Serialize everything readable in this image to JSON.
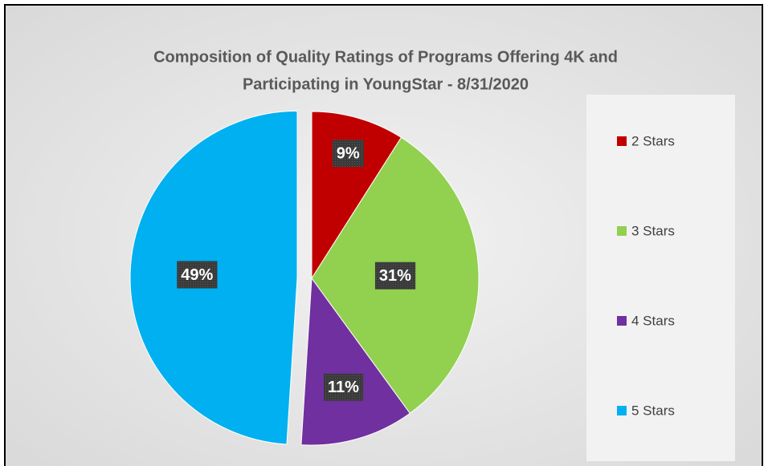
{
  "chart_data": {
    "type": "pie",
    "title": [
      "Composition of Quality Ratings of Programs Offering 4K and",
      "Participating in YoungStar - 8/31/2020"
    ],
    "categories": [
      "2 Stars",
      "3 Stars",
      "4 Stars",
      "5 Stars"
    ],
    "values": [
      9,
      31,
      11,
      49
    ],
    "value_labels": [
      "9%",
      "31%",
      "11%",
      "49%"
    ],
    "colors": [
      "#c00000",
      "#92d050",
      "#7030a0",
      "#00b0f0"
    ],
    "legend": "right"
  }
}
